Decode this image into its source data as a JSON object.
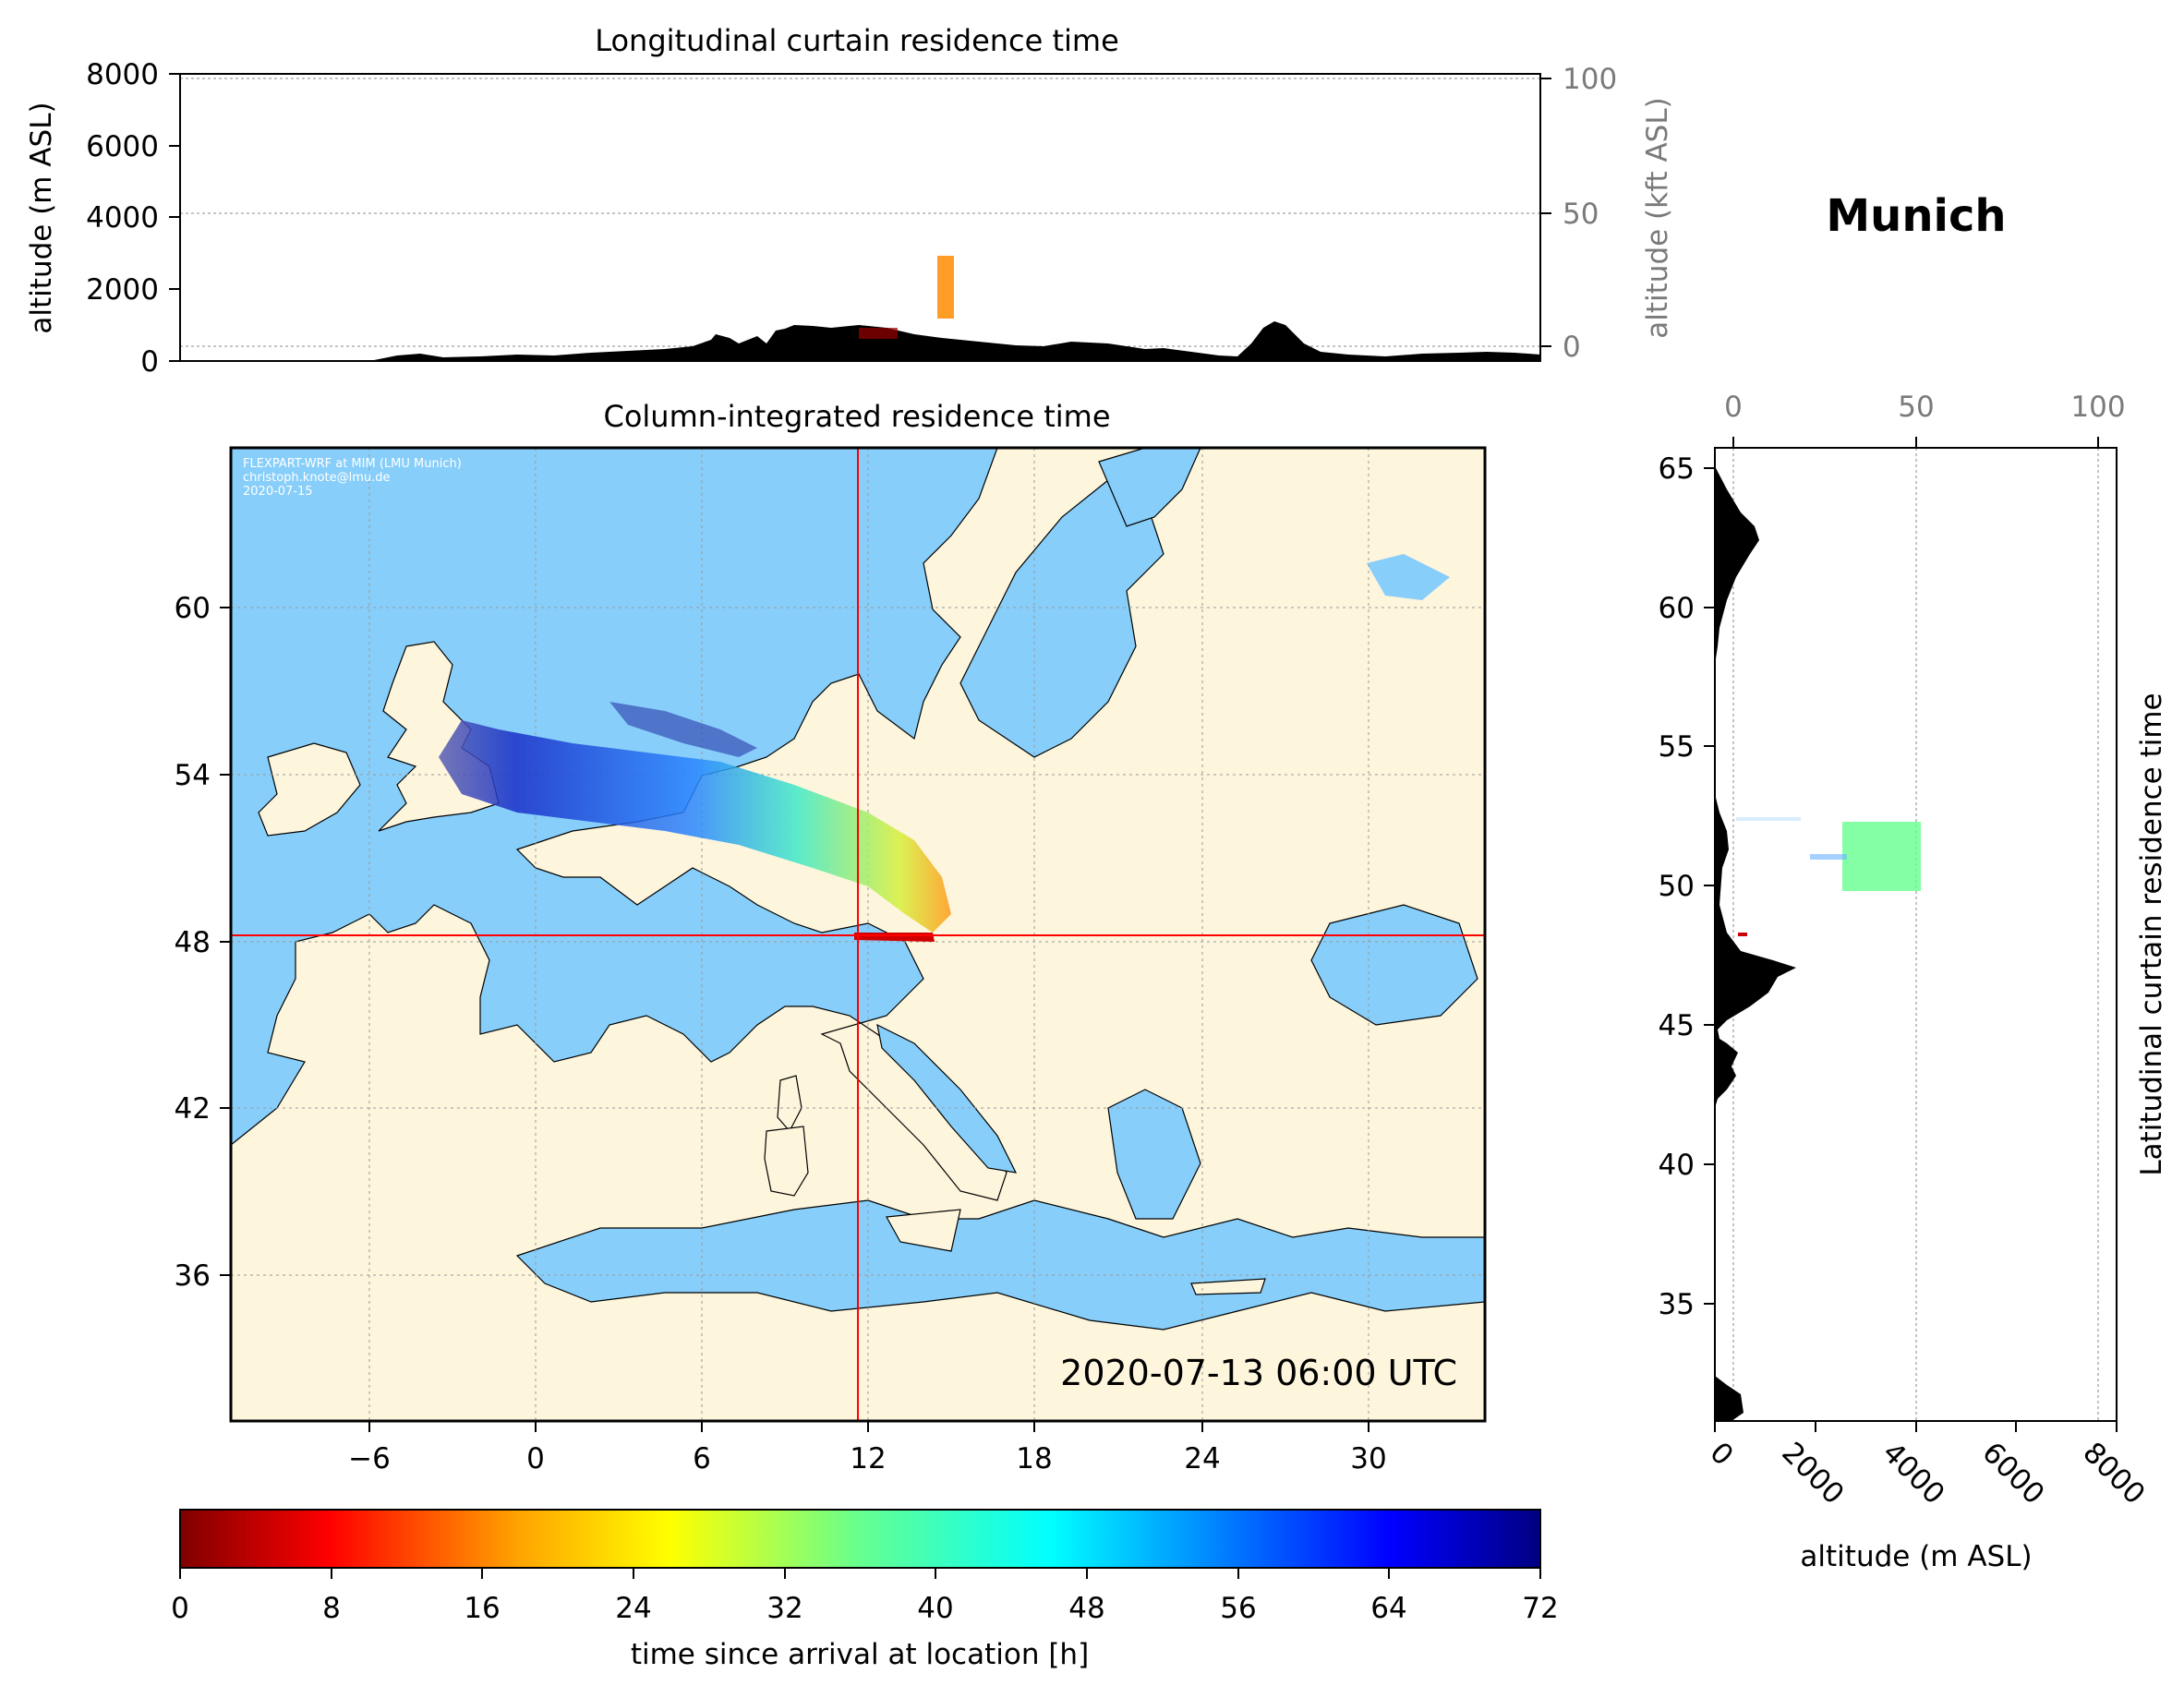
{
  "location": "Munich",
  "top_panel": {
    "title": "Longitudinal curtain residence time",
    "ylabel_left": "altitude (m ASL)",
    "ylabel_right": "altitude (kft ASL)",
    "yticks_left": [
      "0",
      "2000",
      "4000",
      "6000",
      "8000"
    ],
    "yticks_right": [
      "0",
      "50",
      "100"
    ]
  },
  "map_panel": {
    "title": "Column-integrated residence time",
    "xticks": [
      "−6",
      "0",
      "6",
      "12",
      "18",
      "24",
      "30"
    ],
    "yticks": [
      "36",
      "42",
      "48",
      "54",
      "60"
    ],
    "timestamp": "2020-07-13 06:00 UTC",
    "credit_line1": "FLEXPART-WRF at MIM (LMU Munich)",
    "credit_line2": "christoph.knote@lmu.de",
    "credit_line3": "2020-07-15",
    "colors": {
      "sea": "#87cefa",
      "land": "#fdf5dc",
      "crosshair": "#ff0000"
    },
    "crosshair_lon": 11.6,
    "crosshair_lat": 48.1
  },
  "side_panel": {
    "ylabel": "Latitudinal curtain residence time",
    "xlabel": "altitude (m ASL)",
    "xticks_bottom": [
      "0",
      "2000",
      "4000",
      "6000",
      "8000"
    ],
    "xticks_top": [
      "0",
      "50",
      "100"
    ],
    "yticks": [
      "35",
      "40",
      "45",
      "50",
      "55",
      "60",
      "65"
    ]
  },
  "colorbar": {
    "label": "time since arrival at location [h]",
    "ticks": [
      "0",
      "8",
      "16",
      "24",
      "32",
      "40",
      "48",
      "56",
      "64",
      "72"
    ],
    "colormap": "jet_r",
    "range": [
      0,
      72
    ]
  }
}
